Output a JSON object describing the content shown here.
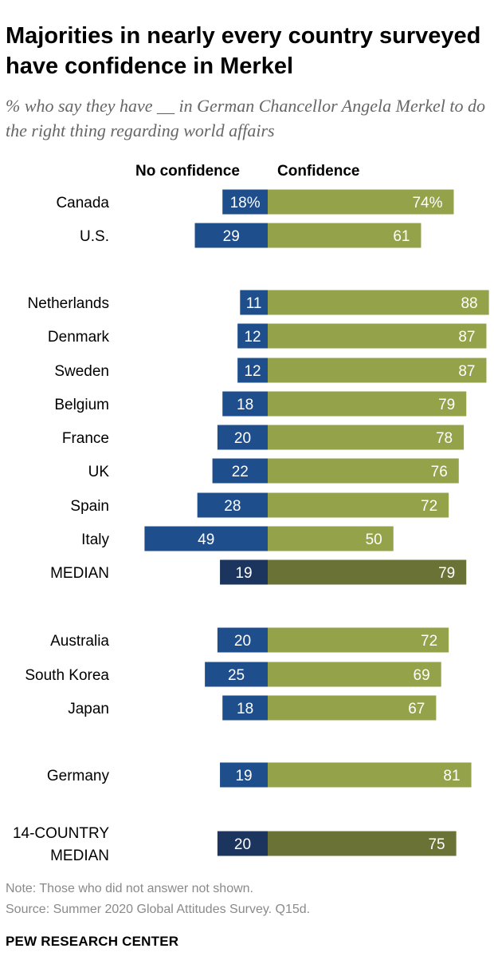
{
  "header": {
    "title": "Majorities in nearly every country surveyed have confidence in Merkel",
    "subtitle": "% who say they have __ in German Chancellor Angela Merkel to do the right thing regarding world affairs"
  },
  "legend": {
    "no_confidence": "No confidence",
    "confidence": "Confidence"
  },
  "colors": {
    "no_confidence": "#1f4e8c",
    "no_confidence_median": "#1b355e",
    "confidence": "#94a24a",
    "confidence_median": "#6b7235"
  },
  "chart_data": {
    "type": "bar",
    "orientation": "horizontal-diverging",
    "title": "Majorities in nearly every country surveyed have confidence in Merkel",
    "categories": [
      "Canada",
      "U.S.",
      "Netherlands",
      "Denmark",
      "Sweden",
      "Belgium",
      "France",
      "UK",
      "Spain",
      "Italy",
      "MEDIAN",
      "Australia",
      "South Korea",
      "Japan",
      "Germany",
      "14-COUNTRY MEDIAN"
    ],
    "category_lines": [
      [
        "Canada"
      ],
      [
        "U.S."
      ],
      [
        "Netherlands"
      ],
      [
        "Denmark"
      ],
      [
        "Sweden"
      ],
      [
        "Belgium"
      ],
      [
        "France"
      ],
      [
        "UK"
      ],
      [
        "Spain"
      ],
      [
        "Italy"
      ],
      [
        "MEDIAN"
      ],
      [
        "Australia"
      ],
      [
        "South Korea"
      ],
      [
        "Japan"
      ],
      [
        "Germany"
      ],
      [
        "14-COUNTRY",
        "MEDIAN"
      ]
    ],
    "is_median": [
      false,
      false,
      false,
      false,
      false,
      false,
      false,
      false,
      false,
      false,
      true,
      false,
      false,
      false,
      false,
      true
    ],
    "series": [
      {
        "name": "No confidence",
        "values": [
          18,
          29,
          11,
          12,
          12,
          18,
          20,
          22,
          28,
          49,
          19,
          20,
          25,
          18,
          19,
          20
        ],
        "labels": [
          "18%",
          "29",
          "11",
          "12",
          "12",
          "18",
          "20",
          "22",
          "28",
          "49",
          "19",
          "20",
          "25",
          "18",
          "19",
          "20"
        ]
      },
      {
        "name": "Confidence",
        "values": [
          74,
          61,
          88,
          87,
          87,
          79,
          78,
          76,
          72,
          50,
          79,
          72,
          69,
          67,
          81,
          75
        ],
        "labels": [
          "74%",
          "61",
          "88",
          "87",
          "87",
          "79",
          "78",
          "76",
          "72",
          "50",
          "79",
          "72",
          "69",
          "67",
          "81",
          "75"
        ]
      }
    ],
    "unit": "%"
  },
  "footer": {
    "note": "Note: Those who did not answer not shown.",
    "source": "Source: Summer 2020 Global Attitudes Survey. Q15d.",
    "brand": "PEW RESEARCH CENTER"
  }
}
